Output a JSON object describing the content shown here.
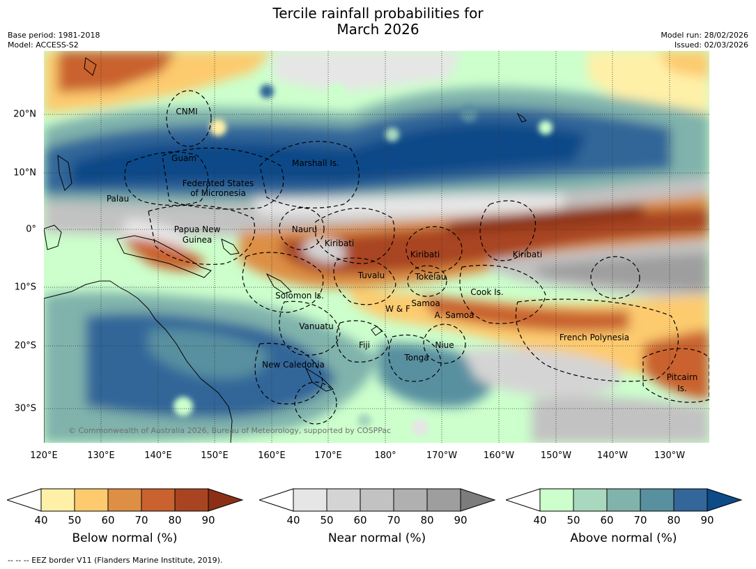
{
  "title": {
    "line1": "Tercile rainfall probabilities for",
    "line2": "March 2026"
  },
  "meta": {
    "base_period": "Base period: 1981-2018",
    "model": "Model: ACCESS-S2",
    "model_run": "Model run: 28/02/2026",
    "issued": "Issued: 02/03/2026"
  },
  "axes": {
    "lon_labels": [
      "120°E",
      "130°E",
      "140°E",
      "150°E",
      "160°E",
      "170°E",
      "180°",
      "170°W",
      "160°W",
      "150°W",
      "140°W",
      "130°W"
    ],
    "lat_labels": [
      "20°N",
      "10°N",
      "0°",
      "10°S",
      "20°S",
      "30°S"
    ]
  },
  "regions": [
    "CNMI",
    "Guam",
    "Marshall Is.",
    "Federated States",
    "of Micronesia",
    "Palau",
    "Papua New",
    "Guinea",
    "Nauru",
    "Kiribati",
    "Kiribati",
    "Kiribati",
    "Tuvalu",
    "Tokelau",
    "Solomon Is.",
    "W & F",
    "Samoa",
    "A. Samoa",
    "Cook Is.",
    "Vanuatu",
    "Fiji",
    "Niue",
    "Tonga",
    "New Caledonia",
    "French Polynesia",
    "Pitcairn",
    "Is."
  ],
  "copyright": "© Commonwealth of Australia 2026, Bureau of Meteorology, supported by COSPPac",
  "colorbars": [
    {
      "title": "Below normal (%)",
      "ticks": [
        "40",
        "50",
        "60",
        "70",
        "80",
        "90"
      ],
      "colors": [
        "#ffffff",
        "#fff0a8",
        "#fdcb6e",
        "#dd8f45",
        "#c9622f",
        "#a94422",
        "#8b3016"
      ]
    },
    {
      "title": "Near normal (%)",
      "ticks": [
        "40",
        "50",
        "60",
        "70",
        "80",
        "90"
      ],
      "colors": [
        "#ffffff",
        "#e6e6e6",
        "#d4d4d4",
        "#c2c2c2",
        "#b0b0b0",
        "#9e9e9e",
        "#7c7c7c"
      ]
    },
    {
      "title": "Above normal (%)",
      "ticks": [
        "40",
        "50",
        "60",
        "70",
        "80",
        "90"
      ],
      "colors": [
        "#ffffff",
        "#ccffcc",
        "#a8d8bd",
        "#80b3ac",
        "#5890a0",
        "#336699",
        "#0d4a88"
      ]
    }
  ],
  "footnote": "--  --  -- EEZ border V11 (Flanders Marine Institute, 2019)."
}
